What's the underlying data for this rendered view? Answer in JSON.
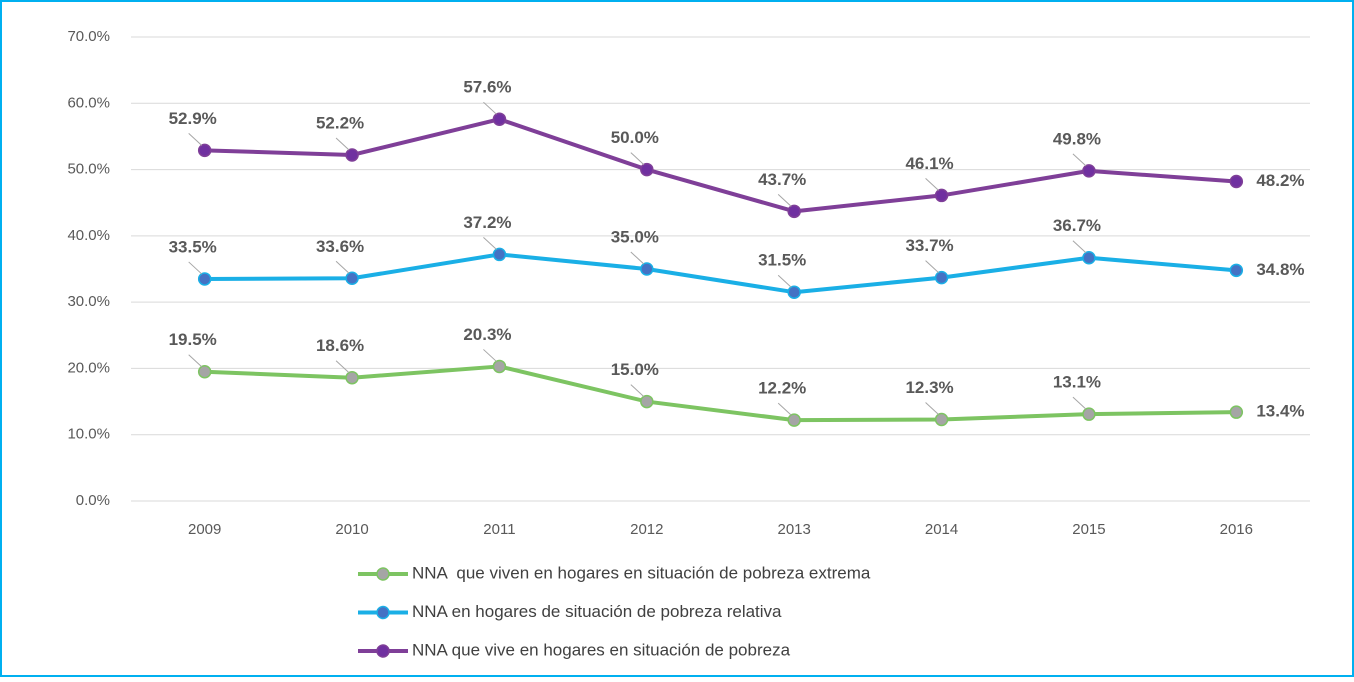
{
  "chart_data": {
    "type": "line",
    "categories": [
      "2009",
      "2010",
      "2011",
      "2012",
      "2013",
      "2014",
      "2015",
      "2016"
    ],
    "ylim": [
      0,
      70
    ],
    "yticks": [
      {
        "value": 0,
        "label": "0.0%"
      },
      {
        "value": 10,
        "label": "10.0%"
      },
      {
        "value": 20,
        "label": "20.0%"
      },
      {
        "value": 30,
        "label": "30.0%"
      },
      {
        "value": 40,
        "label": "40.0%"
      },
      {
        "value": 50,
        "label": "50.0%"
      },
      {
        "value": 60,
        "label": "60.0%"
      },
      {
        "value": 70,
        "label": "70.0%"
      }
    ],
    "grid": true,
    "legend": "bottom",
    "series": [
      {
        "name": "NNA  que viven en hogares en situación de pobreza extrema",
        "color": "#7dc462",
        "marker_color": "#a5a5a5",
        "values": [
          19.5,
          18.6,
          20.3,
          15.0,
          12.2,
          12.3,
          13.1,
          13.4
        ],
        "value_labels": [
          "19.5%",
          "18.6%",
          "20.3%",
          "15.0%",
          "12.2%",
          "12.3%",
          "13.1%",
          "13.4%"
        ]
      },
      {
        "name": "NNA en hogares de situación de pobreza relativa",
        "color": "#1aafe6",
        "marker_color": "#4472c4",
        "values": [
          33.5,
          33.6,
          37.2,
          35.0,
          31.5,
          33.7,
          36.7,
          34.8
        ],
        "value_labels": [
          "33.5%",
          "33.6%",
          "37.2%",
          "35.0%",
          "31.5%",
          "33.7%",
          "36.7%",
          "34.8%"
        ]
      },
      {
        "name": "NNA que vive en hogares en situación de pobreza",
        "color": "#7f3f98",
        "marker_color": "#7030a0",
        "values": [
          52.9,
          52.2,
          57.6,
          50.0,
          43.7,
          46.1,
          49.8,
          48.2
        ],
        "value_labels": [
          "52.9%",
          "52.2%",
          "57.6%",
          "50.0%",
          "43.7%",
          "46.1%",
          "49.8%",
          "48.2%"
        ]
      }
    ]
  }
}
